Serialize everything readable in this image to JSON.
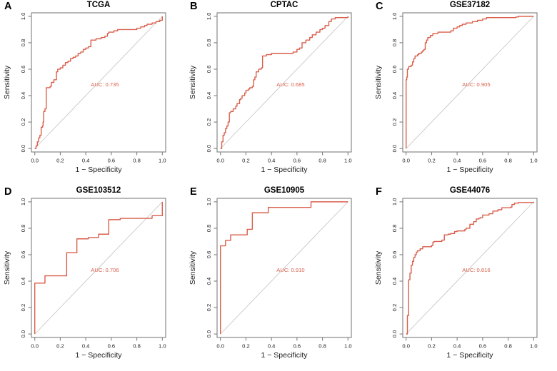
{
  "figure": {
    "background": "#ffffff",
    "panels_per_row": 3
  },
  "colors": {
    "curve": "#D95F4B",
    "auc_text": "#D95F4B",
    "diagonal": "#C6C6C6",
    "frame": "#7F7F7F",
    "tick_text": "#1A1A1A",
    "title_text": "#000000"
  },
  "axes": {
    "x_label": "1 − Specificity",
    "y_label": "Sensitivity",
    "tick_labels": [
      "0.0",
      "0.2",
      "0.4",
      "0.6",
      "0.8",
      "1.0"
    ],
    "tick_values": [
      0,
      0.2,
      0.4,
      0.6,
      0.8,
      1.0
    ],
    "xlim": [
      0,
      1
    ],
    "ylim": [
      0,
      1
    ]
  },
  "chart_data": [
    {
      "type": "line",
      "panel_letter": "A",
      "title": "TCGA",
      "auc": 0.735,
      "auc_label": "AUC: 0.735",
      "xlabel": "1 − Specificity",
      "ylabel": "Sensitivity",
      "xlim": [
        0,
        1
      ],
      "ylim": [
        0,
        1
      ],
      "roc_points": [
        [
          0,
          0
        ],
        [
          0.01,
          0.02
        ],
        [
          0.02,
          0.05
        ],
        [
          0.03,
          0.08
        ],
        [
          0.04,
          0.1
        ],
        [
          0.05,
          0.16
        ],
        [
          0.06,
          0.17
        ],
        [
          0.065,
          0.2
        ],
        [
          0.07,
          0.28
        ],
        [
          0.08,
          0.3
        ],
        [
          0.09,
          0.46
        ],
        [
          0.12,
          0.47
        ],
        [
          0.13,
          0.5
        ],
        [
          0.15,
          0.52
        ],
        [
          0.17,
          0.58
        ],
        [
          0.18,
          0.6
        ],
        [
          0.2,
          0.61
        ],
        [
          0.22,
          0.63
        ],
        [
          0.24,
          0.65
        ],
        [
          0.26,
          0.66
        ],
        [
          0.28,
          0.68
        ],
        [
          0.3,
          0.69
        ],
        [
          0.32,
          0.7
        ],
        [
          0.34,
          0.72
        ],
        [
          0.36,
          0.73
        ],
        [
          0.38,
          0.75
        ],
        [
          0.4,
          0.76
        ],
        [
          0.42,
          0.77
        ],
        [
          0.44,
          0.82
        ],
        [
          0.48,
          0.83
        ],
        [
          0.52,
          0.84
        ],
        [
          0.55,
          0.85
        ],
        [
          0.57,
          0.87
        ],
        [
          0.58,
          0.88
        ],
        [
          0.62,
          0.89
        ],
        [
          0.65,
          0.9
        ],
        [
          0.78,
          0.9
        ],
        [
          0.8,
          0.91
        ],
        [
          0.83,
          0.92
        ],
        [
          0.86,
          0.93
        ],
        [
          0.88,
          0.94
        ],
        [
          0.92,
          0.95
        ],
        [
          0.95,
          0.96
        ],
        [
          0.98,
          0.97
        ],
        [
          1,
          1
        ]
      ]
    },
    {
      "type": "line",
      "panel_letter": "B",
      "title": "CPTAC",
      "auc": 0.685,
      "auc_label": "AUC: 0.685",
      "xlabel": "1 − Specificity",
      "ylabel": "Sensitivity",
      "xlim": [
        0,
        1
      ],
      "ylim": [
        0,
        1
      ],
      "roc_points": [
        [
          0,
          0
        ],
        [
          0.01,
          0.05
        ],
        [
          0.02,
          0.1
        ],
        [
          0.03,
          0.12
        ],
        [
          0.04,
          0.15
        ],
        [
          0.05,
          0.17
        ],
        [
          0.06,
          0.2
        ],
        [
          0.07,
          0.27
        ],
        [
          0.08,
          0.28
        ],
        [
          0.1,
          0.3
        ],
        [
          0.12,
          0.32
        ],
        [
          0.13,
          0.34
        ],
        [
          0.15,
          0.37
        ],
        [
          0.16,
          0.38
        ],
        [
          0.17,
          0.4
        ],
        [
          0.19,
          0.42
        ],
        [
          0.2,
          0.44
        ],
        [
          0.22,
          0.45
        ],
        [
          0.23,
          0.46
        ],
        [
          0.25,
          0.47
        ],
        [
          0.26,
          0.52
        ],
        [
          0.27,
          0.54
        ],
        [
          0.28,
          0.58
        ],
        [
          0.3,
          0.6
        ],
        [
          0.32,
          0.61
        ],
        [
          0.33,
          0.7
        ],
        [
          0.36,
          0.71
        ],
        [
          0.4,
          0.72
        ],
        [
          0.55,
          0.72
        ],
        [
          0.57,
          0.73
        ],
        [
          0.6,
          0.75
        ],
        [
          0.62,
          0.76
        ],
        [
          0.64,
          0.8
        ],
        [
          0.67,
          0.82
        ],
        [
          0.7,
          0.84
        ],
        [
          0.72,
          0.86
        ],
        [
          0.75,
          0.88
        ],
        [
          0.78,
          0.9
        ],
        [
          0.8,
          0.91
        ],
        [
          0.82,
          0.93
        ],
        [
          0.85,
          0.96
        ],
        [
          0.87,
          0.98
        ],
        [
          0.9,
          0.99
        ],
        [
          0.95,
          0.99
        ],
        [
          1,
          1
        ]
      ]
    },
    {
      "type": "line",
      "panel_letter": "C",
      "title": "GSE37182",
      "auc": 0.905,
      "auc_label": "AUC: 0.905",
      "xlabel": "1 − Specificity",
      "ylabel": "Sensitivity",
      "xlim": [
        0,
        1
      ],
      "ylim": [
        0,
        1
      ],
      "roc_points": [
        [
          0,
          0
        ],
        [
          0,
          0.52
        ],
        [
          0.005,
          0.54
        ],
        [
          0.01,
          0.58
        ],
        [
          0.01,
          0.6
        ],
        [
          0.02,
          0.62
        ],
        [
          0.04,
          0.63
        ],
        [
          0.05,
          0.655
        ],
        [
          0.06,
          0.68
        ],
        [
          0.07,
          0.7
        ],
        [
          0.09,
          0.71
        ],
        [
          0.1,
          0.72
        ],
        [
          0.12,
          0.73
        ],
        [
          0.13,
          0.74
        ],
        [
          0.14,
          0.75
        ],
        [
          0.15,
          0.8
        ],
        [
          0.16,
          0.82
        ],
        [
          0.17,
          0.84
        ],
        [
          0.19,
          0.855
        ],
        [
          0.21,
          0.87
        ],
        [
          0.25,
          0.88
        ],
        [
          0.35,
          0.89
        ],
        [
          0.37,
          0.91
        ],
        [
          0.4,
          0.92
        ],
        [
          0.42,
          0.93
        ],
        [
          0.44,
          0.94
        ],
        [
          0.47,
          0.95
        ],
        [
          0.52,
          0.96
        ],
        [
          0.56,
          0.97
        ],
        [
          0.6,
          0.98
        ],
        [
          0.63,
          0.99
        ],
        [
          0.86,
          0.995
        ],
        [
          0.88,
          1
        ],
        [
          1,
          1
        ]
      ]
    },
    {
      "type": "line",
      "panel_letter": "D",
      "title": "GSE103512",
      "auc": 0.706,
      "auc_label": "AUC: 0.706",
      "xlabel": "1 − Specificity",
      "ylabel": "Sensitivity",
      "xlim": [
        0,
        1
      ],
      "ylim": [
        0,
        1
      ],
      "roc_points": [
        [
          0,
          0
        ],
        [
          0,
          0.385
        ],
        [
          0.08,
          0.44
        ],
        [
          0.25,
          0.615
        ],
        [
          0.33,
          0.72
        ],
        [
          0.42,
          0.73
        ],
        [
          0.5,
          0.755
        ],
        [
          0.58,
          0.865
        ],
        [
          0.67,
          0.875
        ],
        [
          0.92,
          0.895
        ],
        [
          1,
          1
        ]
      ]
    },
    {
      "type": "line",
      "panel_letter": "E",
      "title": "GSE10905",
      "auc": 0.91,
      "auc_label": "AUC: 0.910",
      "xlabel": "1 − Specificity",
      "ylabel": "Sensitivity",
      "xlim": [
        0,
        1
      ],
      "ylim": [
        0,
        1
      ],
      "roc_points": [
        [
          0,
          0
        ],
        [
          0,
          0.667
        ],
        [
          0.04,
          0.708
        ],
        [
          0.08,
          0.75
        ],
        [
          0.21,
          0.792
        ],
        [
          0.25,
          0.917
        ],
        [
          0.375,
          0.958
        ],
        [
          0.71,
          1
        ],
        [
          1,
          1
        ]
      ]
    },
    {
      "type": "line",
      "panel_letter": "F",
      "title": "GSE44076",
      "auc": 0.816,
      "auc_label": "AUC: 0.816",
      "xlabel": "1 − Specificity",
      "ylabel": "Sensitivity",
      "xlim": [
        0,
        1
      ],
      "ylim": [
        0,
        1
      ],
      "roc_points": [
        [
          0,
          0
        ],
        [
          0.01,
          0.14
        ],
        [
          0.02,
          0.41
        ],
        [
          0.03,
          0.46
        ],
        [
          0.04,
          0.52
        ],
        [
          0.05,
          0.55
        ],
        [
          0.06,
          0.58
        ],
        [
          0.07,
          0.6
        ],
        [
          0.08,
          0.62
        ],
        [
          0.09,
          0.63
        ],
        [
          0.11,
          0.645
        ],
        [
          0.13,
          0.66
        ],
        [
          0.2,
          0.67
        ],
        [
          0.21,
          0.695
        ],
        [
          0.22,
          0.7
        ],
        [
          0.28,
          0.71
        ],
        [
          0.3,
          0.75
        ],
        [
          0.33,
          0.755
        ],
        [
          0.35,
          0.76
        ],
        [
          0.38,
          0.775
        ],
        [
          0.4,
          0.78
        ],
        [
          0.46,
          0.79
        ],
        [
          0.47,
          0.8
        ],
        [
          0.5,
          0.83
        ],
        [
          0.53,
          0.85
        ],
        [
          0.55,
          0.87
        ],
        [
          0.57,
          0.875
        ],
        [
          0.58,
          0.88
        ],
        [
          0.6,
          0.9
        ],
        [
          0.65,
          0.91
        ],
        [
          0.68,
          0.93
        ],
        [
          0.72,
          0.94
        ],
        [
          0.75,
          0.955
        ],
        [
          0.82,
          0.96
        ],
        [
          0.83,
          0.98
        ],
        [
          0.85,
          0.99
        ],
        [
          0.88,
          0.995
        ],
        [
          1,
          1
        ]
      ]
    }
  ]
}
